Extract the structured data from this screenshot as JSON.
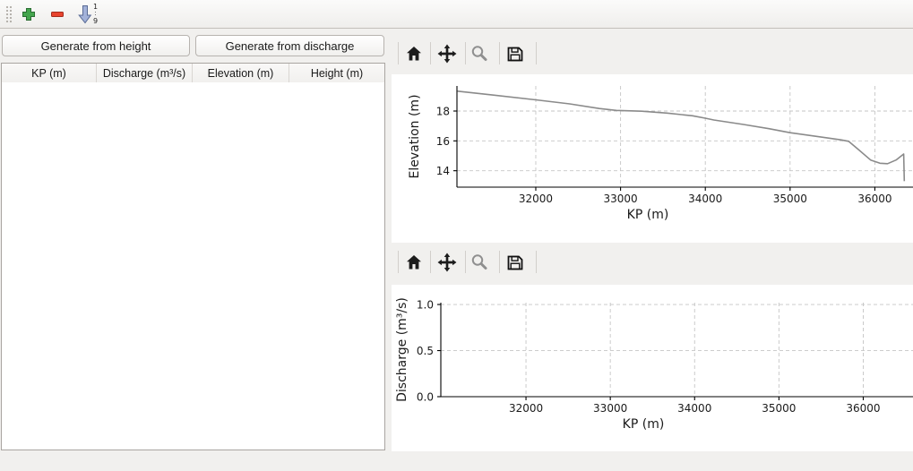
{
  "colors": {
    "green": "#44a54d",
    "green-dark": "#2b6e33",
    "red": "#e8442e",
    "red-dark": "#a32d1e",
    "blue": "#a3b2d9",
    "blue-dark": "#5a6b96",
    "line": "#8a8a8a",
    "grid": "#c5c5c5"
  },
  "main_toolbar": {
    "icons": [
      "add",
      "remove",
      "sort-numeric"
    ],
    "sort_top": "1",
    "sort_bottom": "9"
  },
  "left_panel": {
    "buttons": [
      {
        "label": "Generate from height"
      },
      {
        "label": "Generate from discharge"
      }
    ],
    "table": {
      "columns": [
        "KP (m)",
        "Discharge (m³/s)",
        "Elevation (m)",
        "Height (m)"
      ],
      "rows": []
    }
  },
  "plot_toolbars": {
    "icons": [
      "home",
      "pan",
      "zoom",
      "save"
    ]
  },
  "chart_data": [
    {
      "type": "line",
      "title": "",
      "xlabel": "KP (m)",
      "ylabel": "Elevation (m)",
      "xlim": [
        31070,
        36450
      ],
      "ylim": [
        12.9,
        19.68
      ],
      "xticks": [
        32000,
        33000,
        34000,
        35000,
        36000
      ],
      "xtick_labels": [
        "32000",
        "33000",
        "34000",
        "35000",
        "36000"
      ],
      "yticks": [
        14,
        16,
        18
      ],
      "ytick_labels": [
        "14",
        "16",
        "18"
      ],
      "grid": true,
      "legend": "none",
      "series": [
        {
          "name": "elevation-profile",
          "points": [
            [
              31075,
              19.33
            ],
            [
              31500,
              19.07
            ],
            [
              32000,
              18.75
            ],
            [
              32400,
              18.48
            ],
            [
              32750,
              18.17
            ],
            [
              32950,
              18.04
            ],
            [
              33250,
              17.99
            ],
            [
              33550,
              17.86
            ],
            [
              33850,
              17.68
            ],
            [
              34000,
              17.52
            ],
            [
              34100,
              17.4
            ],
            [
              34450,
              17.1
            ],
            [
              34750,
              16.82
            ],
            [
              35000,
              16.55
            ],
            [
              35350,
              16.27
            ],
            [
              35600,
              16.07
            ],
            [
              35690,
              15.97
            ],
            [
              35800,
              15.45
            ],
            [
              35950,
              14.72
            ],
            [
              36060,
              14.5
            ],
            [
              36150,
              14.47
            ],
            [
              36250,
              14.72
            ],
            [
              36340,
              15.12
            ],
            [
              36348,
              13.3
            ]
          ]
        }
      ]
    },
    {
      "type": "line",
      "title": "",
      "xlabel": "KP (m)",
      "ylabel": "Discharge (m³/s)",
      "xlim": [
        30990,
        36590
      ],
      "ylim": [
        0,
        1.02
      ],
      "xticks": [
        32000,
        33000,
        34000,
        35000,
        36000
      ],
      "xtick_labels": [
        "32000",
        "33000",
        "34000",
        "35000",
        "36000"
      ],
      "yticks": [
        0,
        0.5,
        1.0
      ],
      "ytick_labels": [
        "0.0",
        "0.5",
        "1.0"
      ],
      "grid": true,
      "legend": "none",
      "series": []
    }
  ]
}
